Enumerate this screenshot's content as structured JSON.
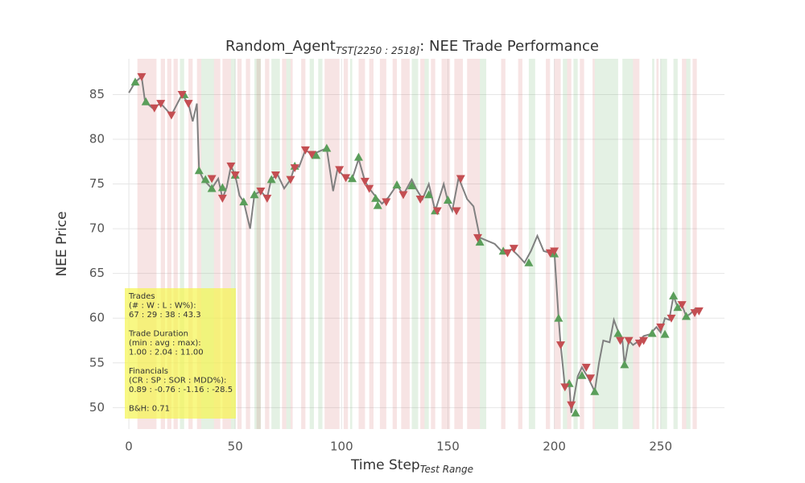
{
  "chart_data": {
    "type": "trade-line",
    "title": "Random_Agent",
    "title_subscript": "TST[2250 : 2518]",
    "title_suffix": ": NEE Trade Performance",
    "xlabel": "Time Step",
    "xlabel_subscript": "Test Range",
    "ylabel": "NEE Price",
    "xlim": [
      -7.6,
      280
    ],
    "ylim": [
      47.6,
      89
    ],
    "xticks": [
      0,
      50,
      100,
      150,
      200,
      250
    ],
    "yticks": [
      50,
      55,
      60,
      65,
      70,
      75,
      80,
      85
    ],
    "grid": true,
    "price": {
      "color": "#808080",
      "x": [
        0,
        3,
        6,
        7.6,
        11,
        15,
        20,
        25,
        28,
        30,
        32,
        33,
        35,
        39,
        42,
        44,
        46,
        48,
        50,
        52,
        54,
        57,
        59,
        62,
        65,
        67,
        70,
        73,
        76,
        78,
        80,
        83,
        86,
        89,
        93,
        96,
        98,
        102,
        105,
        108,
        111,
        113,
        116,
        119,
        122,
        126,
        129,
        133,
        135,
        138,
        141,
        144,
        148,
        150,
        152,
        155,
        159,
        162,
        165,
        168,
        172,
        176,
        180,
        183,
        186,
        189,
        192,
        195,
        198,
        200,
        202,
        203,
        205,
        207,
        208,
        211,
        213,
        216,
        219,
        221,
        223,
        226,
        228,
        230,
        232,
        233,
        235,
        237,
        240,
        242,
        245,
        248,
        250,
        252,
        254,
        256,
        258,
        260,
        262,
        264,
        266,
        268
      ],
      "values": [
        85.2,
        86.4,
        87,
        84.2,
        83.5,
        84,
        82.7,
        85,
        84,
        82,
        84,
        76.5,
        75.5,
        74.5,
        75.6,
        73.4,
        74.6,
        77,
        76,
        73.7,
        73,
        70,
        73.8,
        74.2,
        73.4,
        75.6,
        76,
        74.5,
        75.5,
        77,
        76.9,
        78.8,
        78.3,
        78.6,
        79,
        74.2,
        76.6,
        75.7,
        75.6,
        77.8,
        75.3,
        74.5,
        73.6,
        72.8,
        73.5,
        74.9,
        73.8,
        75.5,
        74.5,
        73.3,
        75,
        72,
        75,
        73,
        72,
        75.7,
        73.3,
        72.5,
        69,
        68.7,
        68.3,
        67.3,
        67.7,
        67,
        66.2,
        67.5,
        69.2,
        67.5,
        67.3,
        67.5,
        60,
        57,
        52.3,
        52.7,
        49.4,
        53.5,
        54.5,
        53.3,
        51.8,
        55,
        57.5,
        57.3,
        59.8,
        58.5,
        57.5,
        54.8,
        57.5,
        57,
        57.5,
        58,
        58.2,
        59,
        58.4,
        60,
        59.8,
        62.5,
        61.2,
        61.5,
        60.2,
        60.5,
        61,
        60.8
      ]
    },
    "buys": {
      "color": "#5a9e5a",
      "x": [
        3,
        8,
        26,
        33,
        36,
        39,
        44,
        50,
        54,
        59,
        67,
        78,
        88,
        93,
        105,
        108,
        116,
        117,
        126,
        133,
        141,
        144,
        150,
        165,
        176,
        188,
        200,
        202,
        207,
        210,
        213,
        219,
        230,
        233,
        246,
        252,
        256,
        258,
        262
      ],
      "values": [
        86.4,
        84.2,
        85,
        76.5,
        75.5,
        74.5,
        74.6,
        76,
        73,
        73.8,
        75.5,
        77,
        78.2,
        79,
        75.6,
        78,
        73.4,
        72.6,
        74.9,
        74.8,
        73.8,
        72,
        73.2,
        68.5,
        67.5,
        66.2,
        67.2,
        60,
        52.7,
        49.4,
        53.6,
        51.8,
        58.3,
        54.8,
        58.3,
        58.2,
        62.5,
        61.2,
        60.2
      ]
    },
    "sells": {
      "color": "#c44e52",
      "x": [
        6,
        12,
        15,
        20,
        25,
        28,
        39,
        44,
        48,
        50,
        62,
        65,
        69,
        76,
        78,
        83,
        86,
        99,
        102,
        111,
        113,
        121,
        129,
        137,
        145,
        154,
        156,
        164,
        178,
        181,
        198,
        200,
        203,
        205,
        208,
        215,
        217,
        231,
        235,
        240,
        242,
        250,
        255,
        260,
        266,
        268
      ],
      "values": [
        87,
        83.5,
        84,
        82.7,
        85,
        84,
        75.6,
        73.4,
        77,
        76,
        74.2,
        73.4,
        76,
        75.5,
        76.8,
        78.8,
        78.3,
        76.6,
        75.7,
        75.3,
        74.5,
        73,
        73.8,
        73.3,
        72,
        72,
        75.6,
        69,
        67.3,
        67.8,
        67.3,
        67.5,
        57,
        52.3,
        50.3,
        54.5,
        53.3,
        57.5,
        57.5,
        57.2,
        57.5,
        59,
        60,
        61.5,
        60.6,
        60.8
      ]
    },
    "short_periods": {
      "color": "rgba(205,92,92,0.17)",
      "start": [
        4,
        15,
        18,
        21,
        28,
        32,
        40,
        44,
        51,
        55,
        60,
        64,
        72,
        76,
        81,
        92,
        101,
        108,
        113,
        118,
        124,
        128,
        137,
        142,
        147,
        153,
        159,
        175,
        183,
        196,
        200,
        206,
        212,
        218,
        237,
        248,
        260,
        265
      ],
      "end": [
        13,
        17,
        20,
        23,
        30,
        34,
        43,
        48,
        53,
        57,
        62,
        66,
        74,
        77,
        83,
        99,
        103,
        111,
        115,
        121,
        126,
        132,
        139,
        144,
        151,
        157,
        165,
        177,
        185,
        198,
        203,
        208,
        214,
        219,
        240,
        249,
        262,
        267
      ]
    },
    "long_periods": {
      "color": "rgba(95,170,95,0.17)",
      "start": [
        24,
        34,
        48,
        59,
        67,
        74,
        85,
        89,
        104,
        133,
        139,
        165,
        188,
        204,
        209,
        219,
        232,
        246,
        250,
        256,
        262
      ],
      "end": [
        26,
        40,
        50,
        62,
        71,
        76,
        87,
        91,
        105,
        136,
        141,
        168,
        191,
        206,
        211,
        230,
        237,
        247,
        253,
        258,
        264
      ]
    },
    "annotation": [
      [
        "Trades",
        "(# : W : L : W%):",
        "67 : 29 : 38 : 43.3"
      ],
      [
        "Trade Duration",
        "(min : avg : max):",
        "1.00 : 2.04 : 11.00"
      ],
      [
        "Financials",
        "(CR : SP : SOR : MDD%):",
        "0.89 : -0.76 : -1.16 : -28.5"
      ],
      [
        "B&H: 0.71"
      ]
    ]
  }
}
